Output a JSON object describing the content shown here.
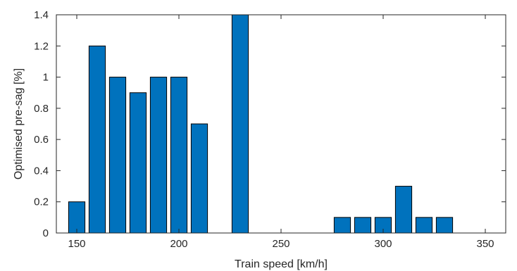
{
  "chart_data": {
    "type": "bar",
    "xlabel": "Train speed [km/h]",
    "ylabel": "Optimised pre-sag [%]",
    "xlim": [
      140,
      360
    ],
    "ylim": [
      0,
      1.4
    ],
    "x_ticks": [
      150,
      200,
      250,
      300,
      350
    ],
    "y_ticks": [
      0,
      0.2,
      0.4,
      0.6,
      0.8,
      1,
      1.2,
      1.4
    ],
    "x_tick_labels": [
      "150",
      "200",
      "250",
      "300",
      "350"
    ],
    "y_tick_labels": [
      "0",
      "0.2",
      "0.4",
      "0.6",
      "0.8",
      "1",
      "1.2",
      "1.4"
    ],
    "bar_width": 8,
    "x": [
      150,
      160,
      170,
      180,
      190,
      200,
      210,
      220,
      230,
      240,
      250,
      260,
      270,
      280,
      290,
      300,
      310,
      320,
      330,
      340,
      350
    ],
    "values": [
      0.2,
      1.2,
      1.0,
      0.9,
      1.0,
      1.0,
      0.7,
      0,
      1.4,
      0,
      0,
      0,
      0,
      0.1,
      0.1,
      0.1,
      0.3,
      0.1,
      0.1,
      0,
      0
    ],
    "grid": false,
    "box": true,
    "colors": {
      "bar_fill": "#0072BD",
      "bar_edge": "#000000",
      "axis": "#262626"
    }
  }
}
